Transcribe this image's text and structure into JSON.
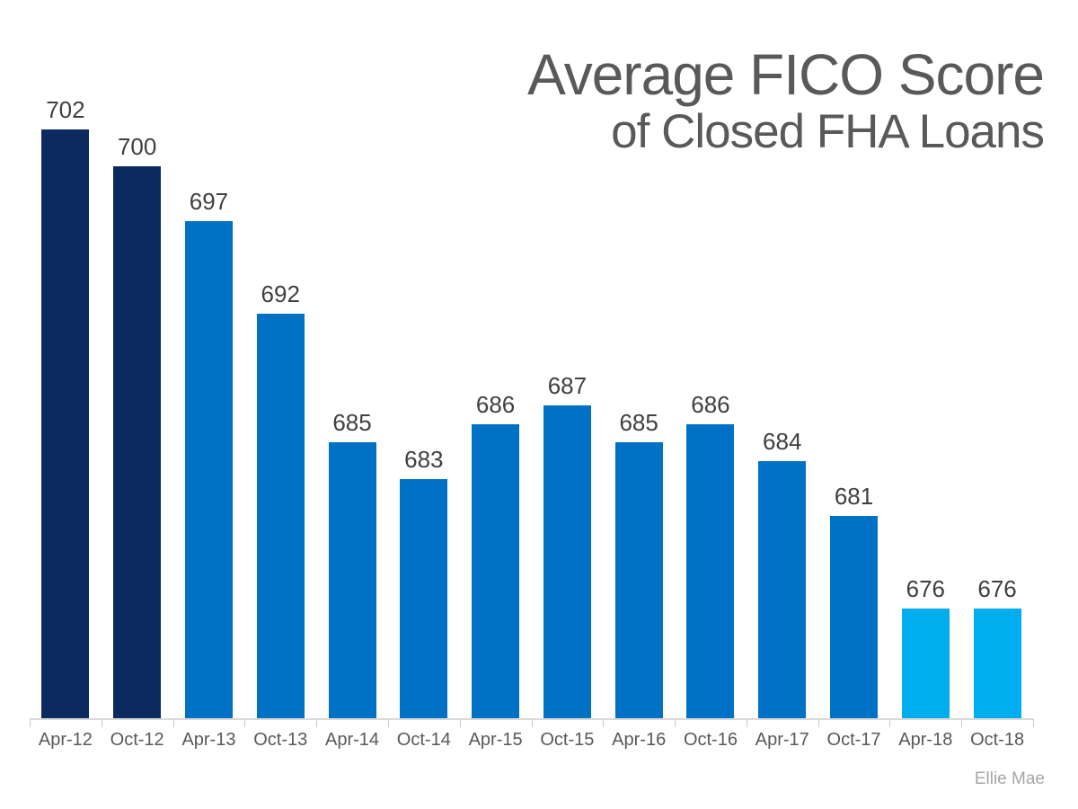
{
  "chart_data": {
    "type": "bar",
    "title": "Average FICO Score of Closed FHA Loans",
    "title_line1": "Average FICO Score",
    "title_line2": "of Closed FHA Loans",
    "categories": [
      "Apr-12",
      "Oct-12",
      "Apr-13",
      "Oct-13",
      "Apr-14",
      "Oct-14",
      "Apr-15",
      "Oct-15",
      "Apr-16",
      "Oct-16",
      "Apr-17",
      "Oct-17",
      "Apr-18",
      "Oct-18"
    ],
    "values": [
      702,
      700,
      697,
      692,
      685,
      683,
      686,
      687,
      685,
      686,
      684,
      681,
      676,
      676
    ],
    "bar_color_groups": [
      "navy",
      "navy",
      "blue",
      "blue",
      "blue",
      "blue",
      "blue",
      "blue",
      "blue",
      "blue",
      "blue",
      "blue",
      "light_blue",
      "light_blue"
    ],
    "bar_colors": {
      "navy": "#0b2a5f",
      "blue": "#0072c6",
      "light_blue": "#00aeef"
    },
    "data_labels": true,
    "grid": false,
    "legend": false,
    "xlabel": "",
    "ylabel": "",
    "ylim": [
      670,
      705
    ],
    "attribution": "Ellie Mae"
  },
  "colors": {
    "background": "#ffffff",
    "title_text": "#595959",
    "data_label_text": "#404040",
    "axis_label_text": "#595959",
    "axis_line": "#d9d9d9",
    "attribution_text": "#a6a6a6"
  }
}
